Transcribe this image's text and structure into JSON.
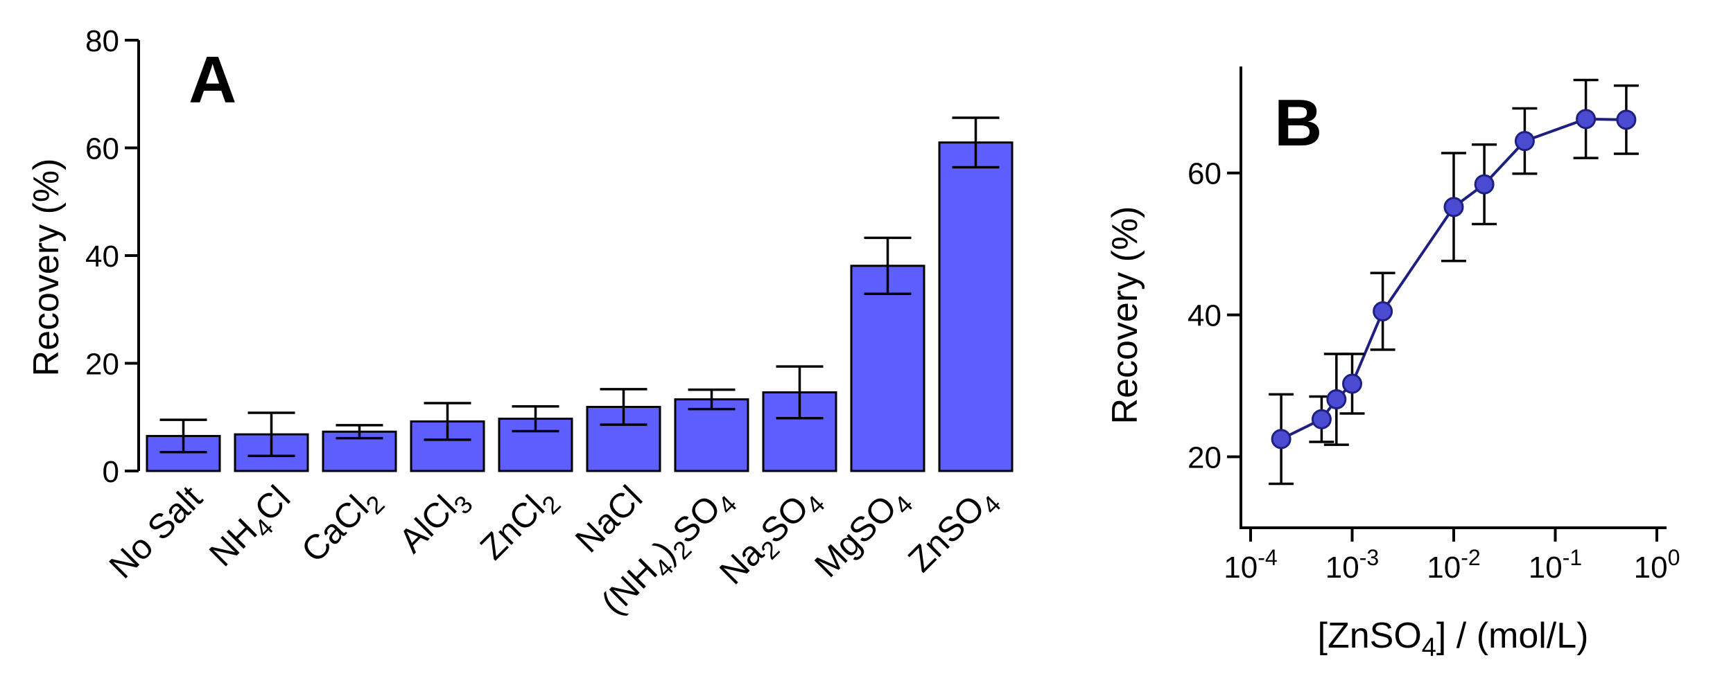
{
  "chart_data": [
    {
      "type": "bar",
      "panel": "A",
      "categories": [
        {
          "base": "No Salt"
        },
        {
          "base": "NH",
          "sub": "4",
          "rest": "Cl"
        },
        {
          "base": "CaCl",
          "sub": "2"
        },
        {
          "base": "AlCl",
          "sub": "3"
        },
        {
          "base": "ZnCl",
          "sub": "2"
        },
        {
          "base": "NaCl"
        },
        {
          "base": "(NH",
          "sub": "4",
          "rest": ")",
          "sub2": "2",
          "rest2": "SO",
          "sub3": "4"
        },
        {
          "base": "Na",
          "sub": "2",
          "rest": "SO",
          "sub2": "4"
        },
        {
          "base": "MgSO",
          "sub": "4"
        },
        {
          "base": "ZnSO",
          "sub": "4"
        }
      ],
      "values": [
        6.5,
        6.8,
        7.3,
        9.2,
        9.7,
        11.9,
        13.3,
        14.6,
        38.1,
        61.0
      ],
      "errors": [
        3.0,
        4.0,
        1.2,
        3.4,
        2.3,
        3.3,
        1.8,
        4.8,
        5.2,
        4.6
      ],
      "ylabel": "Recovery (%)",
      "ylim": [
        0,
        80
      ],
      "yticks": [
        0,
        20,
        40,
        60,
        80
      ],
      "bar_color": "#5e5eff"
    },
    {
      "type": "line",
      "panel": "B",
      "x": [
        0.0002,
        0.0005,
        0.0007,
        0.001,
        0.002,
        0.01,
        0.02,
        0.05,
        0.2,
        0.5
      ],
      "y": [
        22.5,
        25.3,
        28.1,
        30.3,
        40.5,
        55.2,
        58.4,
        64.5,
        67.6,
        67.5
      ],
      "errors": [
        6.3,
        3.2,
        6.4,
        4.2,
        5.4,
        7.6,
        5.6,
        4.6,
        5.5,
        4.8
      ],
      "xscale": "log",
      "xlim": [
        0.0001,
        1
      ],
      "xticks": [
        {
          "base": "10",
          "exp": "-4"
        },
        {
          "base": "10",
          "exp": "-3"
        },
        {
          "base": "10",
          "exp": "-2"
        },
        {
          "base": "10",
          "exp": "-1"
        },
        {
          "base": "10",
          "exp": "0"
        }
      ],
      "ylim": [
        10,
        75
      ],
      "yticks": [
        20,
        40,
        60
      ],
      "ylabel": "Recovery (%)",
      "xlabel": {
        "base": "[ZnSO",
        "sub": "4",
        "rest": "] / (mol/L)"
      },
      "line_color": "#1f1f80",
      "marker_color": "#4b4bd1"
    }
  ]
}
